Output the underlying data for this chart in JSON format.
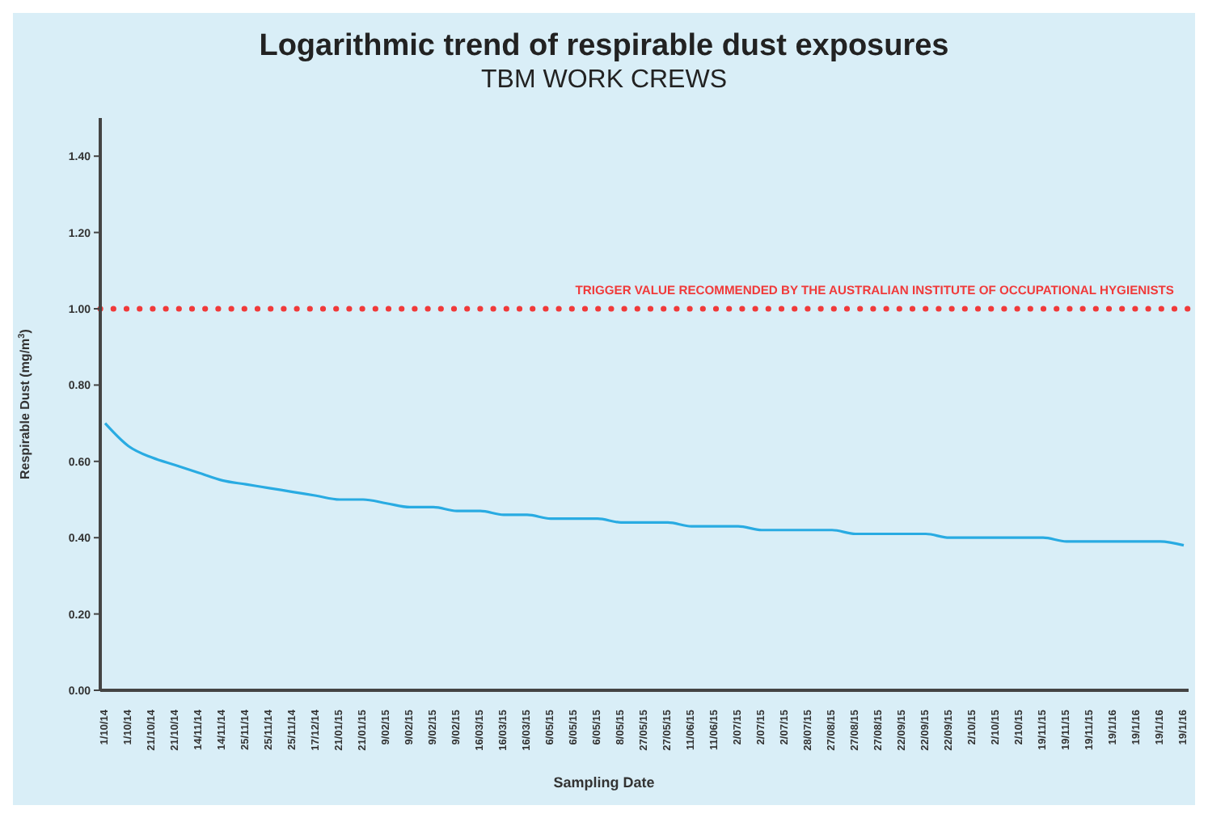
{
  "chart_data": {
    "type": "line",
    "title": "Logarithmic trend of respirable dust exposures",
    "subtitle": "TBM WORK CREWS",
    "xlabel": "Sampling Date",
    "ylabel": "Respirable Dust (mg/m$^{3}$)",
    "categories": [
      "1/10/14",
      "1/10/14",
      "21/10/14",
      "21/10/14",
      "14/11/14",
      "14/11/14",
      "25/11/14",
      "25/11/14",
      "25/11/14",
      "17/12/14",
      "21/01/15",
      "21/01/15",
      "9/02/15",
      "9/02/15",
      "9/02/15",
      "9/02/15",
      "16/03/15",
      "16/03/15",
      "16/03/15",
      "6/05/15",
      "6/05/15",
      "6/05/15",
      "8/05/15",
      "27/05/15",
      "27/05/15",
      "11/06/15",
      "11/06/15",
      "2/07/15",
      "2/07/15",
      "2/07/15",
      "28/07/15",
      "27/08/15",
      "27/08/15",
      "27/08/15",
      "22/09/15",
      "22/09/15",
      "22/09/15",
      "2/10/15",
      "2/10/15",
      "2/10/15",
      "19/11/15",
      "19/11/15",
      "19/11/15",
      "19/1/16",
      "19/1/16",
      "19/1/16",
      "19/1/16"
    ],
    "series": [
      {
        "color": "#29abe2",
        "values": [
          0.7,
          0.64,
          0.61,
          0.59,
          0.57,
          0.55,
          0.54,
          0.53,
          0.52,
          0.51,
          0.5,
          0.5,
          0.49,
          0.48,
          0.48,
          0.47,
          0.47,
          0.46,
          0.46,
          0.45,
          0.45,
          0.45,
          0.44,
          0.44,
          0.44,
          0.43,
          0.43,
          0.43,
          0.42,
          0.42,
          0.42,
          0.42,
          0.41,
          0.41,
          0.41,
          0.41,
          0.4,
          0.4,
          0.4,
          0.4,
          0.4,
          0.39,
          0.39,
          0.39,
          0.39,
          0.39,
          0.38
        ]
      }
    ],
    "ylim": [
      0,
      1.5
    ],
    "yticks": [
      {
        "value": 0,
        "label": "0.00"
      },
      {
        "value": 0.2,
        "label": "0.20"
      },
      {
        "value": 0.4,
        "label": "0.40"
      },
      {
        "value": 0.6,
        "label": "0.60"
      },
      {
        "value": 0.8,
        "label": "0.80"
      },
      {
        "value": 1,
        "label": "1.00"
      },
      {
        "value": 1.2,
        "label": "1.20"
      },
      {
        "value": 1.4,
        "label": "1.40"
      }
    ],
    "ref_lines": [
      {
        "axis": "y",
        "value": 1,
        "label": "TRIGGER VALUE RECOMMENDED BY THE AUSTRALIAN INSTITUTE OF OCCUPATIONAL HYGIENISTS",
        "color": "#f03a3a",
        "line_style": "dotted"
      }
    ],
    "grid": false,
    "marker": "none",
    "line_style": "solid"
  }
}
